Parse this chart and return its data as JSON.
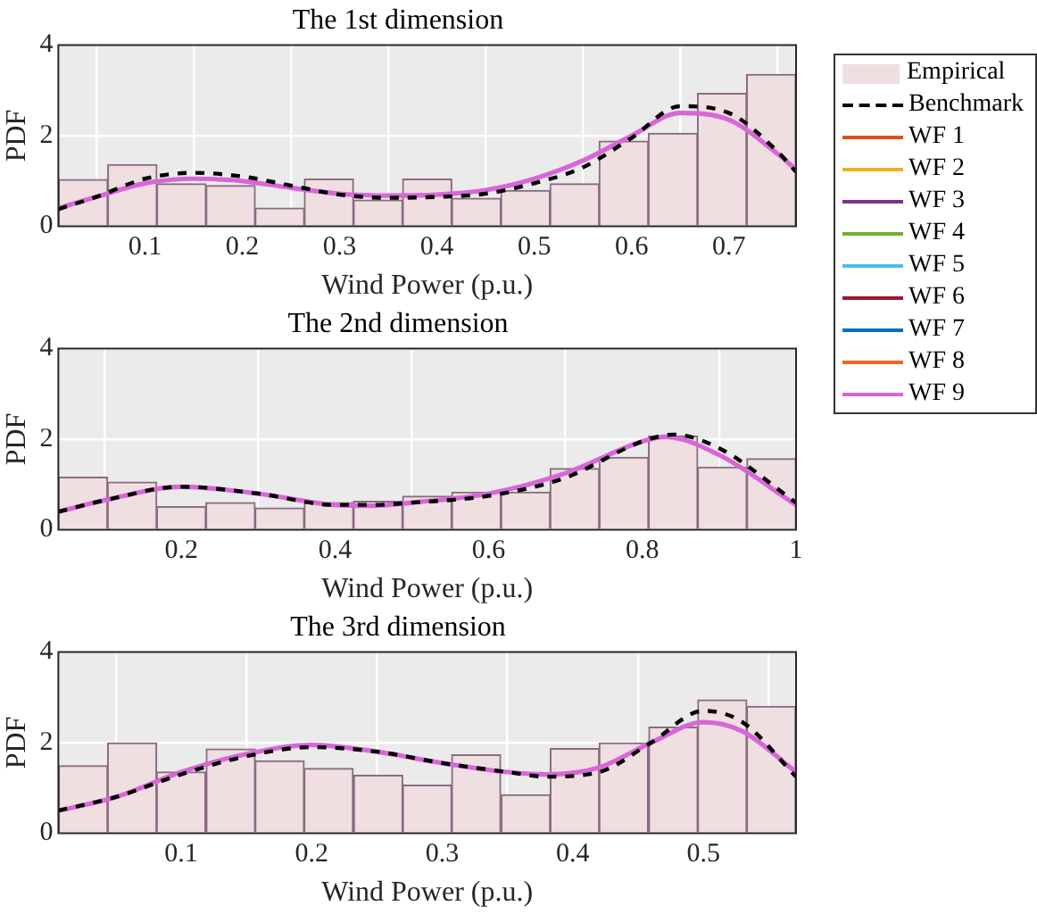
{
  "chart_data": [
    {
      "type": "histogram",
      "title": "The 1st dimension",
      "xlabel": "Wind Power (p.u.)",
      "ylabel": "PDF",
      "xlim": [
        0.011,
        0.769
      ],
      "xticks": [
        0.1,
        0.2,
        0.3,
        0.4,
        0.5,
        0.6,
        0.7
      ],
      "ylim": [
        0,
        4
      ],
      "yticks": [
        0,
        2,
        4
      ],
      "grid": true,
      "legend": "right",
      "marker": "none",
      "series": [
        {
          "name": "Empirical",
          "color": "#efdfe0",
          "bins": [
            0.011,
            0.062,
            0.112,
            0.163,
            0.213,
            0.264,
            0.314,
            0.365,
            0.415,
            0.466,
            0.516,
            0.567,
            0.617,
            0.668,
            0.718,
            0.769
          ],
          "values": [
            1.03,
            1.36,
            0.94,
            0.9,
            0.4,
            1.04,
            0.58,
            1.04,
            0.62,
            0.79,
            0.94,
            1.88,
            2.05,
            2.93,
            3.35
          ]
        },
        {
          "type": "line",
          "name": "Benchmark",
          "color": "#000000",
          "line_style": "dashed",
          "x": [
            0.011,
            0.05,
            0.1,
            0.15,
            0.2,
            0.25,
            0.3,
            0.35,
            0.4,
            0.45,
            0.5,
            0.55,
            0.6,
            0.65,
            0.7,
            0.75,
            0.769
          ],
          "values": [
            0.38,
            0.65,
            1.05,
            1.18,
            1.1,
            0.9,
            0.7,
            0.63,
            0.65,
            0.72,
            0.95,
            1.3,
            1.95,
            2.65,
            2.5,
            1.65,
            1.2
          ]
        },
        {
          "type": "line",
          "name": "WF 1",
          "color": "#d95319"
        },
        {
          "type": "line",
          "name": "WF 2",
          "color": "#edb120"
        },
        {
          "type": "line",
          "name": "WF 3",
          "color": "#7e2f8e"
        },
        {
          "type": "line",
          "name": "WF 4",
          "color": "#77ac30"
        },
        {
          "type": "line",
          "name": "WF 5",
          "color": "#4dbeee"
        },
        {
          "type": "line",
          "name": "WF 6",
          "color": "#a2142f"
        },
        {
          "type": "line",
          "name": "WF 7",
          "color": "#0072bd"
        },
        {
          "type": "line",
          "name": "WF 8",
          "color": "#f0652a"
        },
        {
          "type": "line",
          "name": "WF 9",
          "color": "#d966d9",
          "x": [
            0.011,
            0.05,
            0.1,
            0.15,
            0.2,
            0.25,
            0.3,
            0.35,
            0.4,
            0.45,
            0.5,
            0.55,
            0.6,
            0.65,
            0.7,
            0.75,
            0.769
          ],
          "values": [
            0.4,
            0.65,
            0.95,
            1.05,
            1.0,
            0.85,
            0.72,
            0.68,
            0.7,
            0.8,
            1.05,
            1.45,
            2.0,
            2.5,
            2.35,
            1.6,
            1.25
          ]
        }
      ]
    },
    {
      "type": "histogram",
      "title": "The 2nd dimension",
      "xlabel": "Wind Power (p.u.)",
      "ylabel": "PDF",
      "xlim": [
        0.04,
        1
      ],
      "xticks": [
        0.2,
        0.4,
        0.6,
        0.8,
        1
      ],
      "ylim": [
        0,
        4
      ],
      "yticks": [
        0,
        2,
        4
      ],
      "grid": true,
      "marker": "none",
      "series": [
        {
          "color": "#efdfe0",
          "bins": [
            0.04,
            0.104,
            0.168,
            0.232,
            0.296,
            0.36,
            0.424,
            0.488,
            0.552,
            0.616,
            0.68,
            0.744,
            0.808,
            0.872,
            0.936,
            1.0
          ],
          "values": [
            1.16,
            1.05,
            0.51,
            0.6,
            0.48,
            0.6,
            0.63,
            0.74,
            0.83,
            0.83,
            1.35,
            1.6,
            2.07,
            1.38,
            1.57
          ]
        },
        {
          "type": "line",
          "color": "#000000",
          "line_style": "dashed",
          "x": [
            0.04,
            0.1,
            0.2,
            0.3,
            0.4,
            0.45,
            0.5,
            0.6,
            0.7,
            0.8,
            0.84,
            0.9,
            1.0
          ],
          "values": [
            0.4,
            0.65,
            0.95,
            0.8,
            0.55,
            0.55,
            0.6,
            0.75,
            1.15,
            1.95,
            2.1,
            1.8,
            0.6
          ]
        },
        {
          "type": "line",
          "color": "#d95319"
        },
        {
          "type": "line",
          "color": "#edb120"
        },
        {
          "type": "line",
          "color": "#7e2f8e"
        },
        {
          "type": "line",
          "color": "#77ac30"
        },
        {
          "type": "line",
          "color": "#4dbeee"
        },
        {
          "type": "line",
          "color": "#a2142f"
        },
        {
          "type": "line",
          "color": "#0072bd"
        },
        {
          "type": "line",
          "color": "#f0652a"
        },
        {
          "type": "line",
          "color": "#d966d9",
          "x": [
            0.04,
            0.1,
            0.2,
            0.3,
            0.4,
            0.45,
            0.5,
            0.6,
            0.7,
            0.8,
            0.83,
            0.9,
            1.0
          ],
          "values": [
            0.4,
            0.65,
            0.95,
            0.8,
            0.55,
            0.53,
            0.6,
            0.8,
            1.25,
            1.95,
            2.05,
            1.65,
            0.55
          ]
        }
      ]
    },
    {
      "type": "histogram",
      "title": "The 3rd dimension",
      "xlabel": "Wind Power (p.u.)",
      "ylabel": "PDF",
      "xlim": [
        0.006,
        0.571
      ],
      "xticks": [
        0.1,
        0.2,
        0.3,
        0.4,
        0.5
      ],
      "ylim": [
        0,
        4
      ],
      "yticks": [
        0,
        2,
        4
      ],
      "grid": true,
      "marker": "none",
      "series": [
        {
          "color": "#efdfe0",
          "bins": [
            0.006,
            0.044,
            0.081,
            0.119,
            0.157,
            0.194,
            0.232,
            0.27,
            0.307,
            0.345,
            0.383,
            0.42,
            0.458,
            0.496,
            0.533,
            0.571
          ],
          "values": [
            1.49,
            1.99,
            1.35,
            1.86,
            1.6,
            1.43,
            1.28,
            1.06,
            1.73,
            0.85,
            1.87,
            1.99,
            2.34,
            2.94,
            2.8
          ]
        },
        {
          "type": "line",
          "color": "#000000",
          "line_style": "dashed",
          "x": [
            0.006,
            0.05,
            0.1,
            0.15,
            0.2,
            0.25,
            0.3,
            0.35,
            0.38,
            0.42,
            0.46,
            0.5,
            0.53,
            0.571
          ],
          "values": [
            0.5,
            0.8,
            1.3,
            1.7,
            1.9,
            1.8,
            1.55,
            1.35,
            1.25,
            1.35,
            2.0,
            2.7,
            2.45,
            1.25
          ]
        },
        {
          "type": "line",
          "color": "#d95319"
        },
        {
          "type": "line",
          "color": "#edb120"
        },
        {
          "type": "line",
          "color": "#7e2f8e"
        },
        {
          "type": "line",
          "color": "#77ac30"
        },
        {
          "type": "line",
          "color": "#4dbeee"
        },
        {
          "type": "line",
          "color": "#a2142f"
        },
        {
          "type": "line",
          "color": "#0072bd"
        },
        {
          "type": "line",
          "color": "#f0652a"
        },
        {
          "type": "line",
          "color": "#d966d9",
          "x": [
            0.006,
            0.05,
            0.1,
            0.15,
            0.2,
            0.25,
            0.3,
            0.35,
            0.38,
            0.42,
            0.46,
            0.5,
            0.53,
            0.571
          ],
          "values": [
            0.5,
            0.8,
            1.35,
            1.75,
            1.95,
            1.8,
            1.55,
            1.35,
            1.3,
            1.45,
            2.0,
            2.45,
            2.25,
            1.35
          ]
        }
      ]
    }
  ]
}
